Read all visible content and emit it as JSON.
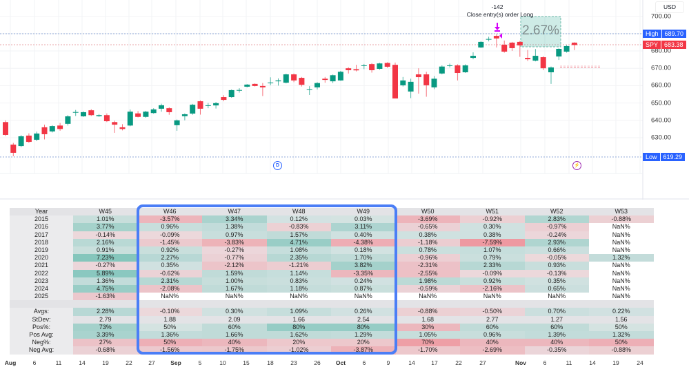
{
  "symbol": "SPY",
  "currency": "USD",
  "price_axis": [
    "700.00",
    "690.00",
    "680.00",
    "670.00",
    "660.00",
    "650.00",
    "640.00",
    "630.00"
  ],
  "price_axis_values": [
    700,
    690,
    680,
    670,
    660,
    650,
    640,
    630
  ],
  "high_tag": {
    "label": "High",
    "value": "689.70",
    "color": "#2962ff"
  },
  "spy_tag": {
    "label": "SPY",
    "value": "683.38",
    "color": "#f23645"
  },
  "low_tag": {
    "label": "Low",
    "value": "619.29",
    "color": "#2962ff"
  },
  "trade_annotation": {
    "qty": "-142",
    "text": "Close entry(s) order Long"
  },
  "range_box": {
    "label": "2.67%"
  },
  "dividend_marker": "D",
  "dates": [
    {
      "t": "Aug",
      "bold": true
    },
    {
      "t": "6"
    },
    {
      "t": "11"
    },
    {
      "t": "14"
    },
    {
      "t": "19"
    },
    {
      "t": "22"
    },
    {
      "t": "27"
    },
    {
      "t": "Sep",
      "bold": true
    },
    {
      "t": "5"
    },
    {
      "t": "10"
    },
    {
      "t": "15"
    },
    {
      "t": "18"
    },
    {
      "t": "23"
    },
    {
      "t": "26"
    },
    {
      "t": "Oct",
      "bold": true
    },
    {
      "t": "6"
    },
    {
      "t": "9"
    },
    {
      "t": "14"
    },
    {
      "t": "17"
    },
    {
      "t": "22"
    },
    {
      "t": "27"
    },
    {
      "t": "Nov",
      "bold": true
    },
    {
      "t": "6"
    },
    {
      "t": "11"
    },
    {
      "t": "14"
    },
    {
      "t": "19"
    },
    {
      "t": "24"
    }
  ],
  "colors": {
    "up": "#089981",
    "down": "#f23645",
    "highlight": "#4b7ef6"
  },
  "candles_ohlc": [
    [
      639,
      640,
      631,
      631.6
    ],
    [
      626,
      627,
      619.3,
      621.3
    ],
    [
      625.2,
      631.5,
      624.5,
      630.8
    ],
    [
      631.2,
      632.5,
      627,
      627.6
    ],
    [
      628.8,
      633.5,
      628,
      632.4
    ],
    [
      636,
      637.5,
      629,
      632
    ],
    [
      633.6,
      637.2,
      633,
      636.7
    ],
    [
      637,
      638.5,
      634,
      635
    ],
    [
      638,
      643,
      637,
      642.3
    ],
    [
      644.6,
      646,
      642.5,
      644.8
    ],
    [
      642.3,
      645.2,
      642,
      644.7
    ],
    [
      645.8,
      646.4,
      642.5,
      643
    ],
    [
      642.4,
      643.6,
      642,
      643
    ],
    [
      643,
      644,
      639,
      639.5
    ],
    [
      639,
      639.8,
      632.8,
      637.5
    ],
    [
      636,
      637.8,
      634.2,
      635
    ],
    [
      637,
      646.2,
      636.6,
      645
    ],
    [
      644,
      645.3,
      641.7,
      642
    ],
    [
      642,
      645.5,
      641.5,
      645
    ],
    [
      644.2,
      647,
      643.8,
      646.3
    ],
    [
      646.7,
      649.6,
      645,
      648.7
    ],
    [
      647,
      647.5,
      643.2,
      644.7
    ],
    [
      637.2,
      640.5,
      634,
      640
    ],
    [
      642.4,
      644,
      640,
      643.5
    ],
    [
      643.9,
      649.5,
      643.2,
      649
    ],
    [
      651,
      651.5,
      643.3,
      646.7
    ],
    [
      648.5,
      650,
      647,
      648.7
    ],
    [
      648.6,
      650.6,
      646.8,
      649.9
    ],
    [
      653.4,
      654.5,
      651,
      651.8
    ],
    [
      653.4,
      657.8,
      653,
      657.4
    ],
    [
      657.3,
      658.5,
      656,
      657.5
    ],
    [
      659.4,
      660.9,
      659,
      660.6
    ],
    [
      661,
      661.3,
      659.5,
      659.8
    ],
    [
      659.8,
      661.5,
      654,
      659
    ],
    [
      661.4,
      664.8,
      660.2,
      661.8
    ],
    [
      662.5,
      664.2,
      660,
      663
    ],
    [
      661.7,
      666.9,
      661.3,
      666.5
    ],
    [
      666.5,
      667,
      662,
      663
    ],
    [
      664.5,
      665,
      659.5,
      660.5
    ],
    [
      657.7,
      659.7,
      654.6,
      657.9
    ],
    [
      659,
      662,
      657.8,
      661.5
    ],
    [
      664,
      665,
      661.7,
      663.3
    ],
    [
      662.5,
      666.4,
      661.5,
      666
    ],
    [
      663,
      668.5,
      662.8,
      668
    ],
    [
      670,
      670.6,
      667,
      668.9
    ],
    [
      669.5,
      672,
      668.2,
      668.8
    ],
    [
      671.5,
      672.5,
      669.5,
      671.7
    ],
    [
      672.4,
      673,
      667.5,
      668.9
    ],
    [
      669.7,
      673.2,
      669.2,
      672.8
    ],
    [
      673.1,
      673.5,
      670.2,
      670.9
    ],
    [
      672,
      673.3,
      652.6,
      652.6
    ],
    [
      660.2,
      665,
      659.5,
      663
    ],
    [
      656.6,
      664,
      652.8,
      662.2
    ],
    [
      666.5,
      670,
      655.4,
      664.9
    ],
    [
      666.5,
      668,
      653.6,
      660.2
    ],
    [
      659,
      665.5,
      658,
      664
    ],
    [
      667,
      671.7,
      666.5,
      671
    ],
    [
      671.5,
      672.7,
      670.5,
      671.7
    ],
    [
      671.7,
      672.3,
      663,
      667.3
    ],
    [
      667.7,
      672.3,
      667.3,
      671.7
    ],
    [
      676,
      679.2,
      675.2,
      677.2
    ],
    [
      682,
      685.7,
      681.7,
      685.2
    ],
    [
      686.7,
      688.2,
      685.5,
      686.9
    ],
    [
      688.7,
      689.7,
      682,
      687.2
    ],
    [
      683.6,
      686,
      679,
      679.6
    ],
    [
      684.8,
      685.2,
      680,
      681.6
    ],
    [
      685.2,
      685.8,
      676.6,
      683.2
    ],
    [
      676,
      680.6,
      674.2,
      675.2
    ],
    [
      674.4,
      681.1,
      674,
      677.2
    ],
    [
      676.4,
      677,
      668.9,
      670
    ],
    [
      667.7,
      671,
      661,
      670.5
    ],
    [
      676.8,
      681.5,
      674.8,
      681.2
    ],
    [
      679.6,
      683.4,
      679,
      682.8
    ],
    [
      684.8,
      685,
      680.5,
      683.4
    ]
  ],
  "table": {
    "header": [
      "Year",
      "W45",
      "W46",
      "W47",
      "W48",
      "W49",
      "W50",
      "W51",
      "W52",
      "W53"
    ],
    "rows": [
      {
        "label": "2015",
        "kind": "pct",
        "values": [
          "1.01%",
          "-3.57%",
          "3.34%",
          "0.12%",
          "0.03%",
          "-3.69%",
          "-0.92%",
          "2.83%",
          "-0.88%"
        ]
      },
      {
        "label": "2016",
        "kind": "pct",
        "values": [
          "3.77%",
          "0.96%",
          "1.38%",
          "-0.83%",
          "3.11%",
          "-0.65%",
          "0.30%",
          "-0.97%",
          "NaN%"
        ]
      },
      {
        "label": "2017",
        "kind": "pct",
        "values": [
          "-0.14%",
          "-0.09%",
          "0.97%",
          "1.57%",
          "0.40%",
          "0.38%",
          "0.38%",
          "-0.24%",
          "NaN%"
        ]
      },
      {
        "label": "2018",
        "kind": "pct",
        "values": [
          "2.16%",
          "-1.45%",
          "-3.83%",
          "4.71%",
          "-4.38%",
          "-1.18%",
          "-7.59%",
          "2.93%",
          "NaN%"
        ]
      },
      {
        "label": "2019",
        "kind": "pct",
        "values": [
          "0.91%",
          "0.92%",
          "-0.27%",
          "1.08%",
          "0.18%",
          "0.78%",
          "1.07%",
          "0.66%",
          "NaN%"
        ]
      },
      {
        "label": "2020",
        "kind": "pct",
        "values": [
          "7.23%",
          "2.27%",
          "-0.77%",
          "2.35%",
          "1.70%",
          "-0.96%",
          "0.79%",
          "-0.05%",
          "1.32%"
        ]
      },
      {
        "label": "2021",
        "kind": "pct",
        "values": [
          "-0.27%",
          "0.35%",
          "-2.12%",
          "-1.21%",
          "3.82%",
          "-2.31%",
          "2.33%",
          "0.93%",
          "NaN%"
        ]
      },
      {
        "label": "2022",
        "kind": "pct",
        "values": [
          "5.89%",
          "-0.62%",
          "1.59%",
          "1.14%",
          "-3.35%",
          "-2.55%",
          "-0.09%",
          "-0.13%",
          "NaN%"
        ]
      },
      {
        "label": "2023",
        "kind": "pct",
        "values": [
          "1.36%",
          "2.31%",
          "1.00%",
          "0.83%",
          "0.24%",
          "1.98%",
          "0.92%",
          "0.35%",
          "NaN%"
        ]
      },
      {
        "label": "2024",
        "kind": "pct",
        "values": [
          "4.75%",
          "-2.08%",
          "1.67%",
          "1.18%",
          "0.87%",
          "-0.59%",
          "-2.16%",
          "0.65%",
          "NaN%"
        ]
      },
      {
        "label": "2025",
        "kind": "pct",
        "values": [
          "-1.63%",
          "NaN%",
          "NaN%",
          "NaN%",
          "NaN%",
          "NaN%",
          "NaN%",
          "NaN%",
          "NaN%"
        ]
      },
      {
        "label": "",
        "kind": "blank",
        "values": [
          "",
          "",
          "",
          "",
          "",
          "",
          "",
          "",
          ""
        ]
      },
      {
        "label": "Avgs:",
        "kind": "pct",
        "values": [
          "2.28%",
          "-0.10%",
          "0.30%",
          "1.09%",
          "0.26%",
          "-0.88%",
          "-0.50%",
          "0.70%",
          "0.22%"
        ]
      },
      {
        "label": "StDev:",
        "kind": "plain",
        "values": [
          "2.79",
          "1.88",
          "2.09",
          "1.66",
          "2.54",
          "1.68",
          "2.77",
          "1.27",
          "1.56"
        ]
      },
      {
        "label": "Pos%:",
        "kind": "pos",
        "values": [
          "73%",
          "50%",
          "60%",
          "80%",
          "80%",
          "30%",
          "60%",
          "60%",
          "50%"
        ]
      },
      {
        "label": "Pos Avg:",
        "kind": "pct",
        "values": [
          "3.39%",
          "1.36%",
          "1.66%",
          "1.62%",
          "1.29%",
          "1.05%",
          "0.96%",
          "1.39%",
          "1.32%"
        ]
      },
      {
        "label": "Neg%:",
        "kind": "neg",
        "values": [
          "27%",
          "50%",
          "40%",
          "20%",
          "20%",
          "70%",
          "40%",
          "40%",
          "50%"
        ]
      },
      {
        "label": "Neg Avg:",
        "kind": "pct",
        "values": [
          "-0.68%",
          "-1.56%",
          "-1.75%",
          "-1.02%",
          "-3.87%",
          "-1.70%",
          "-2.69%",
          "-0.35%",
          "-0.88%"
        ]
      }
    ]
  }
}
